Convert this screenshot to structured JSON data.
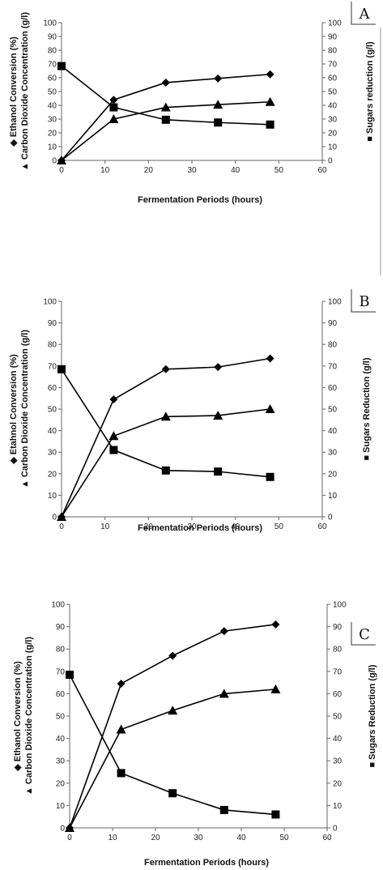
{
  "chart_data": [
    {
      "type": "line",
      "panel_label": "A",
      "x": [
        0,
        12,
        24,
        36,
        48
      ],
      "xlim": [
        0,
        60
      ],
      "xticks": [
        0,
        10,
        20,
        30,
        40,
        50,
        60
      ],
      "ylim": [
        0,
        100
      ],
      "y2lim": [
        0,
        100
      ],
      "yticks": [
        0,
        10,
        20,
        30,
        40,
        50,
        60,
        70,
        80,
        90,
        100
      ],
      "xlabel": "Fermentation Periods (hours)",
      "ylabel_line1": "◆ Ethanol Conversion (%)",
      "ylabel_line2": "▲ Carbon Dioxide Concentration (g/l)",
      "y2label": "■ Sugars reduction (g/l)",
      "grid": false,
      "series": [
        {
          "marker": "diamond",
          "axis": "left",
          "values": [
            0,
            44,
            56.5,
            59.5,
            62.5
          ]
        },
        {
          "marker": "triangle",
          "axis": "left",
          "values": [
            0,
            30,
            38.5,
            40.5,
            42.5
          ]
        },
        {
          "marker": "square",
          "axis": "right",
          "values": [
            68.5,
            38.5,
            29.5,
            27.5,
            26
          ]
        }
      ]
    },
    {
      "type": "line",
      "panel_label": "B",
      "x": [
        0,
        12,
        24,
        36,
        48
      ],
      "xlim": [
        0,
        60
      ],
      "xticks": [
        0,
        10,
        20,
        30,
        40,
        50,
        60
      ],
      "ylim": [
        0,
        100
      ],
      "y2lim": [
        0,
        100
      ],
      "yticks": [
        0,
        10,
        20,
        30,
        40,
        50,
        60,
        70,
        80,
        90,
        100
      ],
      "xlabel": "Fermentation Periods (hours)",
      "ylabel_line1": "◆ Etahnol Conversion (%)",
      "ylabel_line2": "▲ Carbon Dioxide Concentration (g/l)",
      "y2label": "■ Sugars Reduction (g/l)",
      "grid": false,
      "series": [
        {
          "marker": "diamond",
          "axis": "left",
          "values": [
            0,
            54.5,
            68.5,
            69.5,
            73.5
          ]
        },
        {
          "marker": "triangle",
          "axis": "left",
          "values": [
            0,
            37.5,
            46.5,
            47,
            50
          ]
        },
        {
          "marker": "square",
          "axis": "right",
          "values": [
            68.5,
            31,
            21.5,
            21,
            18.5
          ]
        }
      ]
    },
    {
      "type": "line",
      "panel_label": "C",
      "x": [
        0,
        12,
        24,
        36,
        48
      ],
      "xlim": [
        0,
        60
      ],
      "xticks": [
        0,
        10,
        20,
        30,
        40,
        50,
        60
      ],
      "ylim": [
        0,
        100
      ],
      "y2lim": [
        0,
        100
      ],
      "yticks": [
        0,
        10,
        20,
        30,
        40,
        50,
        60,
        70,
        80,
        90,
        100
      ],
      "xlabel": "Fermentation Periods (hours)",
      "ylabel_line1": "◆ Ethanol Conversion (%)",
      "ylabel_line2": "▲ Carbon Dioxide Concentration (g/l)",
      "y2label": "■ Sugars Reduction (g/l)",
      "grid": false,
      "series": [
        {
          "marker": "diamond",
          "axis": "left",
          "values": [
            0,
            64.5,
            77,
            88,
            91
          ]
        },
        {
          "marker": "triangle",
          "axis": "left",
          "values": [
            0,
            44,
            52.5,
            60,
            62
          ]
        },
        {
          "marker": "square",
          "axis": "right",
          "values": [
            68.5,
            24.5,
            15.5,
            8,
            6
          ]
        }
      ]
    }
  ]
}
